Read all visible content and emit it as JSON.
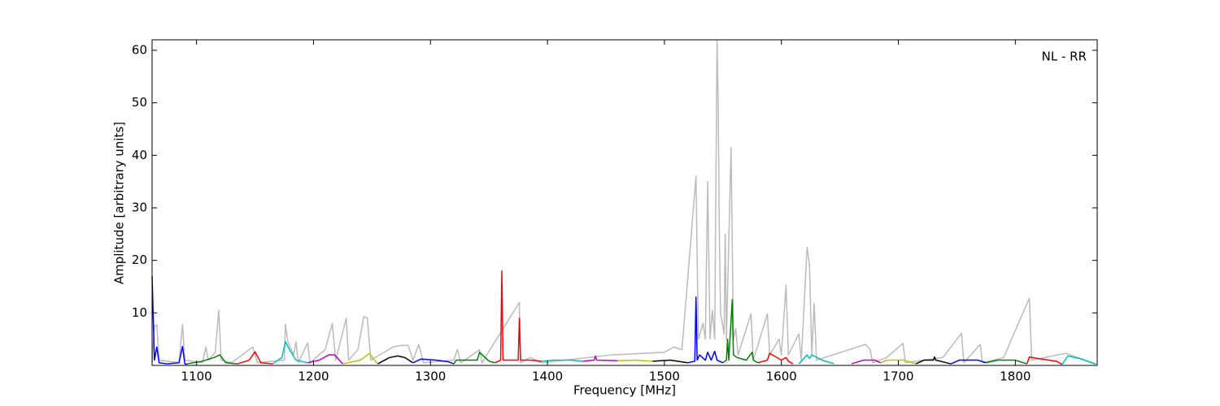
{
  "chart_data": {
    "type": "line",
    "xlabel": "Frequency [MHz]",
    "ylabel": "Amplitude [arbitrary units]",
    "annotation": "NL - RR",
    "xlim": [
      1062,
      1870
    ],
    "ylim": [
      0,
      62
    ],
    "xticks": [
      1100,
      1200,
      1300,
      1400,
      1500,
      1600,
      1700,
      1800
    ],
    "yticks": [
      10,
      20,
      30,
      40,
      50,
      60
    ],
    "grid": false,
    "series": [
      {
        "color": "#bbbbbb",
        "x": [
          1062,
          1064,
          1066,
          1068,
          1085,
          1088,
          1090,
          1105,
          1108,
          1110,
          1116,
          1119,
          1121,
          1130,
          1148,
          1152,
          1175,
          1176,
          1178,
          1183,
          1185,
          1187,
          1195,
          1197,
          1210,
          1216,
          1219,
          1228,
          1230,
          1238,
          1243,
          1246,
          1249,
          1268,
          1275,
          1281,
          1285,
          1290,
          1294,
          1320,
          1323,
          1326,
          1342,
          1344,
          1376,
          1377,
          1385,
          1395,
          1455,
          1500,
          1508,
          1515,
          1527,
          1529,
          1533,
          1535,
          1537,
          1539,
          1541,
          1543,
          1545,
          1546,
          1547,
          1548,
          1551,
          1552,
          1553,
          1557,
          1559,
          1561,
          1563,
          1574,
          1576,
          1588,
          1590,
          1598,
          1600,
          1604,
          1606,
          1615,
          1617,
          1622,
          1624,
          1626,
          1628,
          1630,
          1672,
          1676,
          1678,
          1690,
          1704,
          1706,
          1738,
          1754,
          1756,
          1770,
          1772,
          1790,
          1812,
          1814,
          1843,
          1869
        ],
        "values": [
          0.5,
          7.5,
          7.7,
          1,
          0.5,
          7.8,
          1,
          0.5,
          3.5,
          1,
          2.5,
          10.5,
          1,
          0.5,
          3.5,
          0.5,
          1,
          7.8,
          4.5,
          2,
          4.5,
          0.5,
          4.3,
          0.5,
          3,
          8,
          1,
          9,
          1,
          3,
          9.3,
          9,
          1,
          3.5,
          3.8,
          3.8,
          1,
          4,
          0.5,
          1,
          3,
          0.5,
          3,
          0.5,
          12,
          0.5,
          1.5,
          0.5,
          2,
          2.5,
          3.5,
          3,
          36,
          5,
          8,
          5,
          35,
          5,
          10.5,
          5,
          62,
          49.5,
          24.5,
          10,
          6,
          25,
          5,
          41.5,
          5,
          7,
          2,
          9.8,
          1,
          9.8,
          2,
          5,
          2,
          15.3,
          2,
          6,
          1,
          22.5,
          19.2,
          2,
          11.8,
          1,
          4,
          3,
          0.5,
          1.5,
          4.2,
          0.5,
          1.5,
          6.1,
          0.5,
          4,
          0.5,
          1.5,
          12.8,
          1,
          2.3,
          0.3
        ]
      },
      {
        "color": "#0000ff",
        "x": [
          1062,
          1064,
          1066,
          1068,
          1075,
          1085,
          1088,
          1090,
          1092
        ],
        "values": [
          17,
          1,
          3.5,
          0.5,
          0.3,
          0.5,
          3.6,
          0.3,
          0.2
        ]
      },
      {
        "color": "#008000",
        "x": [
          1092,
          1105,
          1115,
          1120,
          1125,
          1135
        ],
        "values": [
          0.3,
          0.8,
          1.5,
          2,
          0.5,
          0.3
        ]
      },
      {
        "color": "#ff0000",
        "x": [
          1135,
          1145,
          1150,
          1155,
          1165
        ],
        "values": [
          0.3,
          1,
          2.6,
          0.5,
          0.3
        ]
      },
      {
        "color": "#00bfbf",
        "x": [
          1165,
          1173,
          1176,
          1180,
          1185,
          1195
        ],
        "values": [
          0.3,
          1.5,
          4.5,
          2.8,
          1,
          0.5
        ]
      },
      {
        "color": "#bf00bf",
        "x": [
          1195,
          1205,
          1213,
          1218,
          1225
        ],
        "values": [
          0.5,
          1,
          2,
          2,
          0.3
        ]
      },
      {
        "color": "#bfbf00",
        "x": [
          1225,
          1240,
          1248,
          1252,
          1255
        ],
        "values": [
          0.3,
          1,
          2.3,
          1,
          0.3
        ]
      },
      {
        "color": "#000000",
        "x": [
          1255,
          1265,
          1272,
          1278,
          1285
        ],
        "values": [
          0.3,
          1.5,
          1.8,
          1.5,
          0.5
        ]
      },
      {
        "color": "#0000ff",
        "x": [
          1285,
          1292,
          1305,
          1315,
          1320
        ],
        "values": [
          0.5,
          1.2,
          1,
          0.7,
          0.3
        ]
      },
      {
        "color": "#008000",
        "x": [
          1320,
          1322,
          1330,
          1340,
          1342,
          1350,
          1355
        ],
        "values": [
          0.3,
          1,
          1,
          1,
          2.5,
          0.8,
          0.5
        ]
      },
      {
        "color": "#ff0000",
        "x": [
          1355,
          1360,
          1361,
          1362,
          1375,
          1376,
          1377,
          1385,
          1395
        ],
        "values": [
          0.5,
          1,
          18,
          1,
          1,
          9,
          1,
          1,
          0.8
        ]
      },
      {
        "color": "#00bfbf",
        "x": [
          1395,
          1405,
          1420,
          1430
        ],
        "values": [
          0.8,
          1,
          1,
          0.8
        ]
      },
      {
        "color": "#bf00bf",
        "x": [
          1430,
          1440,
          1441,
          1442,
          1460
        ],
        "values": [
          0.8,
          1,
          1.8,
          1,
          0.9
        ]
      },
      {
        "color": "#bfbf00",
        "x": [
          1460,
          1475,
          1490
        ],
        "values": [
          0.9,
          1,
          0.8
        ]
      },
      {
        "color": "#000000",
        "x": [
          1490,
          1505,
          1520
        ],
        "values": [
          0.8,
          1,
          0.5
        ]
      },
      {
        "color": "#0000ff",
        "x": [
          1520,
          1526,
          1527,
          1528,
          1530,
          1535,
          1537,
          1540,
          1543,
          1545,
          1550
        ],
        "values": [
          0.5,
          0.8,
          13,
          1,
          2,
          1,
          2.5,
          1,
          2.7,
          1,
          0.5
        ]
      },
      {
        "color": "#008000",
        "x": [
          1550,
          1553,
          1554,
          1555,
          1558,
          1559,
          1562,
          1570,
          1575,
          1576,
          1580
        ],
        "values": [
          0.5,
          1,
          5,
          1,
          12.5,
          2,
          1.5,
          1,
          2.5,
          1,
          0.5
        ]
      },
      {
        "color": "#ff0000",
        "x": [
          1580,
          1588,
          1590,
          1600,
          1604,
          1606,
          1610
        ],
        "values": [
          0.5,
          1,
          2.3,
          1,
          1.5,
          0.8,
          0.3
        ]
      },
      {
        "color": "#00bfbf",
        "x": [
          1615,
          1622,
          1624,
          1626,
          1635,
          1645
        ],
        "values": [
          0.3,
          2,
          1.3,
          2,
          1,
          0.3
        ]
      },
      {
        "color": "#bf00bf",
        "x": [
          1660,
          1670,
          1680,
          1685
        ],
        "values": [
          0.3,
          1,
          1,
          0.5
        ]
      },
      {
        "color": "#bfbf00",
        "x": [
          1685,
          1690,
          1705,
          1715
        ],
        "values": [
          0.5,
          1,
          1,
          0.3
        ]
      },
      {
        "color": "#000000",
        "x": [
          1715,
          1722,
          1730,
          1731,
          1732,
          1745
        ],
        "values": [
          0.3,
          1,
          1,
          1.6,
          1,
          0.3
        ]
      },
      {
        "color": "#0000ff",
        "x": [
          1745,
          1752,
          1768,
          1775
        ],
        "values": [
          0.3,
          1,
          1,
          0.5
        ]
      },
      {
        "color": "#008000",
        "x": [
          1775,
          1785,
          1800,
          1810
        ],
        "values": [
          0.5,
          1,
          1,
          0.3
        ]
      },
      {
        "color": "#ff0000",
        "x": [
          1810,
          1812,
          1820,
          1835,
          1840
        ],
        "values": [
          0.3,
          1.6,
          1.3,
          0.8,
          0.2
        ]
      },
      {
        "color": "#00bfbf",
        "x": [
          1840,
          1845,
          1855,
          1869
        ],
        "values": [
          0.2,
          1.8,
          1.3,
          0.2
        ]
      }
    ]
  }
}
